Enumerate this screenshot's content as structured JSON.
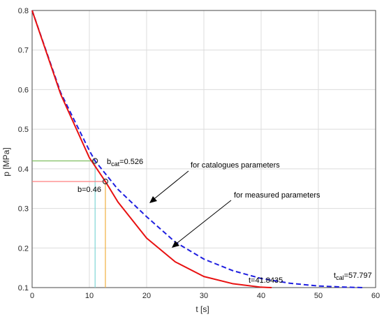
{
  "chart_data": {
    "type": "line",
    "xlabel": "t [s]",
    "ylabel": "p [MPa]",
    "xlim": [
      0,
      60
    ],
    "ylim": [
      0.1,
      0.8
    ],
    "xticks": [
      "0",
      "10",
      "20",
      "30",
      "40",
      "50",
      "60"
    ],
    "yticks": [
      "0.1",
      "0.2",
      "0.3",
      "0.4",
      "0.5",
      "0.6",
      "0.7",
      "0.8"
    ],
    "grid": true,
    "series": [
      {
        "style": "dashed",
        "color": "#1f1fe0",
        "x": [
          0,
          5,
          10,
          11,
          15,
          20,
          25,
          30,
          35,
          40,
          45,
          50,
          55,
          57.797
        ],
        "y": [
          0.8,
          0.592,
          0.446,
          0.42,
          0.348,
          0.279,
          0.215,
          0.172,
          0.143,
          0.123,
          0.111,
          0.104,
          0.101,
          0.1
        ]
      },
      {
        "style": "solid",
        "color": "#e81010",
        "x": [
          0,
          5,
          10,
          12.8,
          15,
          20,
          25,
          30,
          35,
          40,
          41.8435
        ],
        "y": [
          0.8,
          0.588,
          0.428,
          0.368,
          0.316,
          0.225,
          0.165,
          0.128,
          0.11,
          0.101,
          0.1
        ]
      }
    ],
    "markers": [
      {
        "x": 11,
        "y": 0.42,
        "hline_color": "#7fbf5f",
        "vline_color": "#7fd6d6"
      },
      {
        "x": 12.8,
        "y": 0.368,
        "hline_color": "#ff7f7f",
        "vline_color": "#f0b040"
      }
    ],
    "annotations": {
      "bcat_base": "b",
      "bcat_sub": "cat",
      "bcat_value": "=0.526",
      "b_label": "b=0.46",
      "catalogue_label": "for catalogues parameters",
      "measured_label": "for measured parameters",
      "t_label": "t=41.8435",
      "tcal_base": "t",
      "tcal_sub": "cal",
      "tcal_value": "=57.797"
    }
  }
}
